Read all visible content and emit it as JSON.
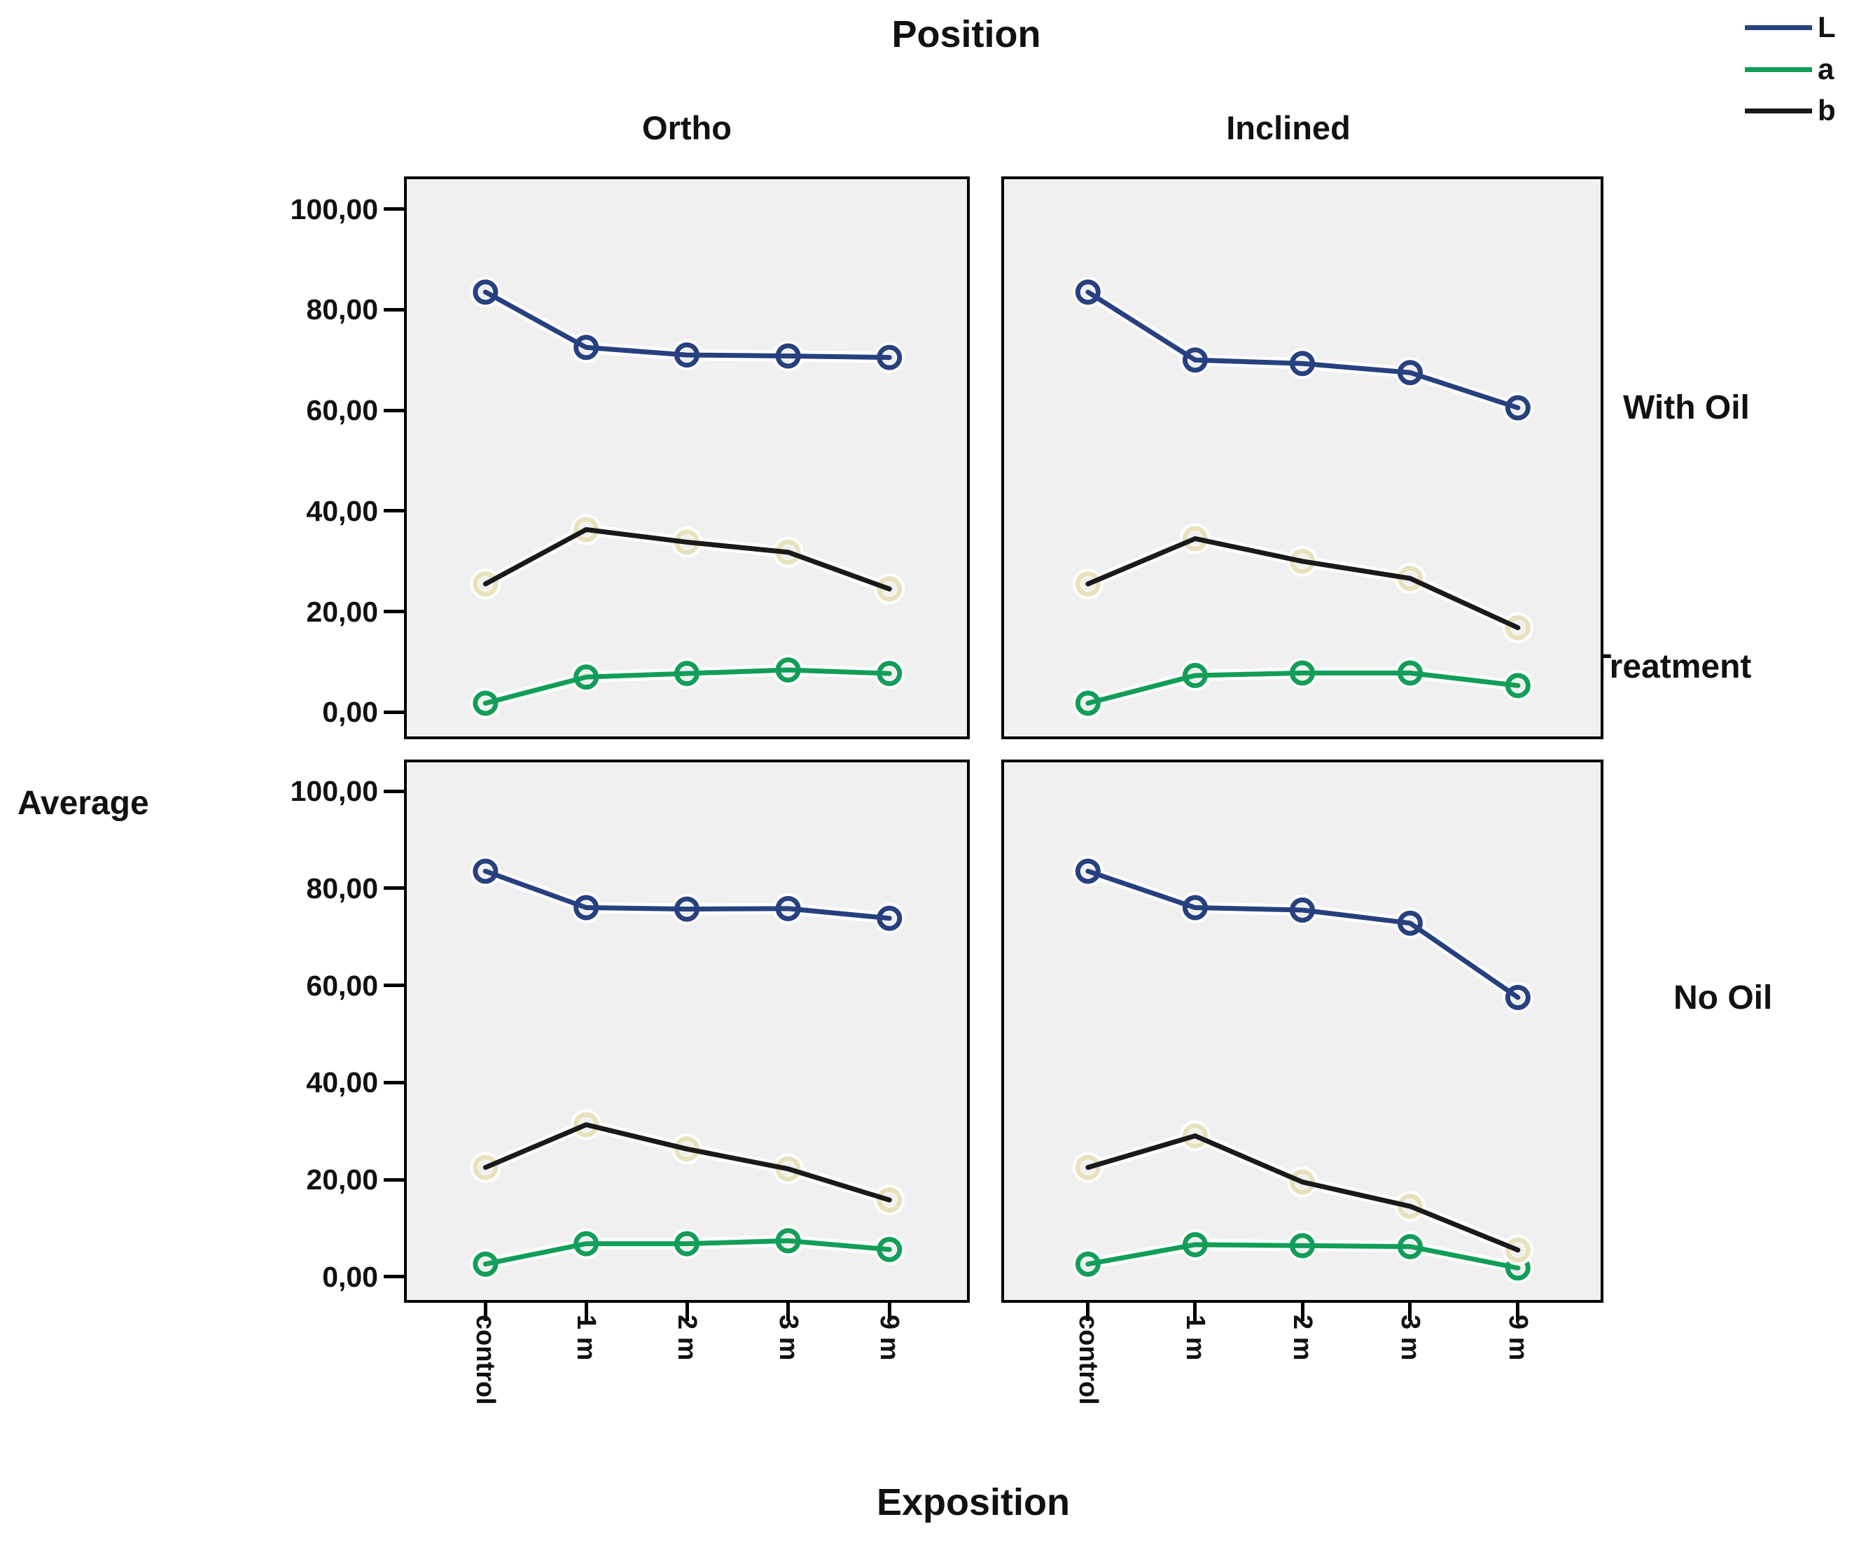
{
  "chart_data": {
    "type": "line",
    "title": "Position",
    "xlabel": "Exposition",
    "ylabel": "Average",
    "row_variable_label": "Treatment",
    "columns": [
      "Ortho",
      "Inclined"
    ],
    "rows": [
      "With Oil",
      "No Oil"
    ],
    "categories": [
      "control",
      "1 m",
      "2 m",
      "3 m",
      "9 m"
    ],
    "y_ticks": [
      "100,00",
      "80,00",
      "60,00",
      "40,00",
      "20,00",
      "0,00"
    ],
    "ylim": [
      0,
      100
    ],
    "grid": "off",
    "legend_position": "top-right",
    "legend": [
      {
        "label": "L",
        "color": "#27407f"
      },
      {
        "label": "a",
        "color": "#129e58"
      },
      {
        "label": "b",
        "color": "#1a1a1a"
      }
    ],
    "colors": {
      "L": "#27407f",
      "a": "#129e58",
      "b": "#1a1a1a",
      "b_marker_ring": "#e9e1bd",
      "panel_background": "#f0f0f0",
      "panel_border": "#000000",
      "halo": "#ffffff"
    },
    "panels": [
      {
        "row": "With Oil",
        "col": "Ortho",
        "series": [
          {
            "name": "L",
            "values": [
              83.5,
              72.5,
              71.0,
              70.8,
              70.5
            ]
          },
          {
            "name": "a",
            "values": [
              1.8,
              7.0,
              7.7,
              8.4,
              7.7
            ]
          },
          {
            "name": "b",
            "values": [
              25.5,
              36.3,
              33.8,
              31.8,
              24.5
            ]
          }
        ]
      },
      {
        "row": "With Oil",
        "col": "Inclined",
        "series": [
          {
            "name": "L",
            "values": [
              83.5,
              70.0,
              69.3,
              67.5,
              60.5
            ]
          },
          {
            "name": "a",
            "values": [
              1.8,
              7.3,
              7.8,
              7.8,
              5.3
            ]
          },
          {
            "name": "b",
            "values": [
              25.5,
              34.5,
              30.0,
              26.6,
              16.8
            ]
          }
        ]
      },
      {
        "row": "No Oil",
        "col": "Ortho",
        "series": [
          {
            "name": "L",
            "values": [
              83.5,
              76.0,
              75.7,
              75.8,
              73.8
            ]
          },
          {
            "name": "a",
            "values": [
              2.6,
              6.8,
              6.8,
              7.4,
              5.6
            ]
          },
          {
            "name": "b",
            "values": [
              22.5,
              31.3,
              26.3,
              22.2,
              15.8
            ]
          }
        ]
      },
      {
        "row": "No Oil",
        "col": "Inclined",
        "series": [
          {
            "name": "L",
            "values": [
              83.5,
              76.0,
              75.5,
              72.8,
              57.5
            ]
          },
          {
            "name": "a",
            "values": [
              2.6,
              6.6,
              6.4,
              6.2,
              1.8
            ]
          },
          {
            "name": "b",
            "values": [
              22.5,
              29.0,
              19.5,
              14.5,
              5.5
            ]
          }
        ]
      }
    ]
  }
}
